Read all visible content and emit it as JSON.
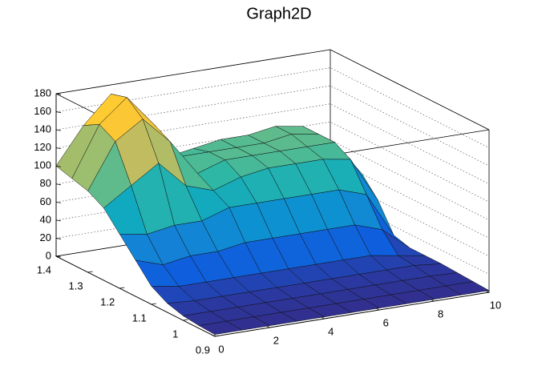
{
  "chart_data": {
    "type": "surface",
    "title": "Graph2D",
    "x": [
      0,
      1,
      2,
      3,
      4,
      5,
      6,
      7,
      8,
      9,
      10
    ],
    "y": [
      0.9,
      0.95,
      1.0,
      1.05,
      1.1,
      1.15,
      1.2,
      1.25,
      1.3,
      1.35,
      1.4
    ],
    "z": [
      [
        2,
        2,
        2,
        2,
        2,
        2,
        2,
        2,
        2,
        2,
        2
      ],
      [
        3,
        3,
        3,
        3,
        3,
        3,
        3,
        3,
        3,
        3,
        3
      ],
      [
        5,
        5,
        5,
        5,
        5,
        5,
        5,
        5,
        5,
        5,
        4
      ],
      [
        10,
        8,
        8,
        8,
        8,
        8,
        8,
        8,
        8,
        8,
        5
      ],
      [
        20,
        15,
        15,
        15,
        15,
        15,
        15,
        15,
        15,
        10,
        5
      ],
      [
        40,
        30,
        35,
        35,
        40,
        40,
        40,
        40,
        40,
        30,
        5
      ],
      [
        60,
        55,
        60,
        60,
        70,
        70,
        70,
        70,
        70,
        60,
        10
      ],
      [
        80,
        100,
        120,
        90,
        80,
        90,
        95,
        95,
        95,
        90,
        40
      ],
      [
        90,
        140,
        160,
        130,
        90,
        100,
        100,
        100,
        100,
        100,
        60
      ],
      [
        95,
        150,
        175,
        140,
        100,
        100,
        100,
        100,
        105,
        100,
        70
      ],
      [
        100,
        140,
        170,
        130,
        90,
        95,
        100,
        100,
        105,
        100,
        70
      ]
    ],
    "xlim": [
      0,
      10
    ],
    "xticks": [
      0,
      2,
      4,
      6,
      8,
      10
    ],
    "ylim": [
      0.9,
      1.4
    ],
    "yticks": [
      0.9,
      1,
      1.1,
      1.2,
      1.3,
      1.4
    ],
    "zlim": [
      0,
      180
    ],
    "zticks": [
      0,
      20,
      40,
      60,
      80,
      100,
      120,
      140,
      160,
      180
    ],
    "grid": true,
    "colors": [
      "#352a87",
      "#0f5cdd",
      "#1481d6",
      "#06a4ca",
      "#2eb7a4",
      "#87bf77",
      "#d1bb59",
      "#fec832",
      "#f9fb0e"
    ]
  }
}
